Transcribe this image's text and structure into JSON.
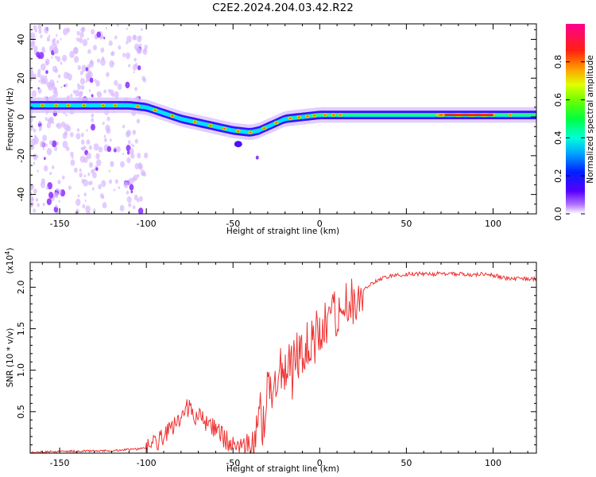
{
  "title": "C2E2.2024.204.03.42.R22",
  "colorbar": {
    "label": "Normalized spectral amplitude",
    "ticks": [
      "0.0",
      "0.2",
      "0.4",
      "0.6",
      "0.8"
    ],
    "tick_values": [
      0.0,
      0.2,
      0.4,
      0.6,
      0.8
    ]
  },
  "chart_data": [
    {
      "type": "heatmap",
      "xlabel": "Height of straight line (km)",
      "ylabel": "Frequency (Hz)",
      "xlim": [
        -167,
        125
      ],
      "ylim": [
        -50,
        48
      ],
      "xticks": [
        -150,
        -100,
        -50,
        0,
        50,
        100
      ],
      "xtick_labels": [
        "-150",
        "-100",
        "-50",
        "0",
        "50",
        "100"
      ],
      "yticks": [
        -40,
        -20,
        0,
        20,
        40
      ],
      "ytick_labels": [
        "-40",
        "-20",
        "0",
        "20",
        "40"
      ],
      "ridge": {
        "x": [
          -167,
          -150,
          -130,
          -110,
          -100,
          -90,
          -80,
          -70,
          -60,
          -50,
          -40,
          -35,
          -30,
          -20,
          -10,
          0,
          10,
          30,
          50,
          75,
          100,
          125
        ],
        "frequency": [
          6,
          6,
          6,
          6,
          5,
          2,
          -1,
          -3,
          -5,
          -7,
          -8,
          -7,
          -5,
          -1,
          0,
          1,
          1,
          1,
          1,
          1,
          1,
          1
        ]
      }
    },
    {
      "type": "line",
      "xlabel": "Height of straight line (km)",
      "ylabel": "SNR (10 * v/v)",
      "y_multiplier_label": "(x10",
      "y_multiplier_exp": "4",
      "y_multiplier_close": ")",
      "xlim": [
        -167,
        125
      ],
      "ylim": [
        0,
        2.3
      ],
      "xticks": [
        -150,
        -100,
        -50,
        0,
        50,
        100
      ],
      "xtick_labels": [
        "-150",
        "-100",
        "-50",
        "0",
        "50",
        "100"
      ],
      "yticks": [
        0.5,
        1.0,
        1.5,
        2.0
      ],
      "ytick_labels": [
        "0.5",
        "1.0",
        "1.5",
        "2.0"
      ],
      "color": "#ee3333",
      "x": [
        -167,
        -150,
        -120,
        -105,
        -100,
        -95,
        -90,
        -85,
        -80,
        -76,
        -72,
        -68,
        -64,
        -60,
        -56,
        -52,
        -50,
        -48,
        -44,
        -40,
        -36,
        -32,
        -30,
        -28,
        -25,
        -22,
        -18,
        -14,
        -10,
        -6,
        -2,
        2,
        6,
        8,
        10,
        14,
        18,
        22,
        26,
        30,
        35,
        40,
        45,
        50,
        60,
        70,
        80,
        90,
        95,
        100,
        105,
        110,
        115,
        120,
        125
      ],
      "y": [
        0.01,
        0.02,
        0.03,
        0.05,
        0.07,
        0.12,
        0.2,
        0.3,
        0.4,
        0.55,
        0.45,
        0.4,
        0.35,
        0.3,
        0.2,
        0.12,
        0.08,
        0.06,
        0.08,
        0.15,
        0.35,
        0.5,
        0.7,
        0.85,
        0.9,
        1.0,
        1.05,
        1.15,
        1.2,
        1.35,
        1.4,
        1.55,
        1.7,
        1.95,
        1.6,
        1.7,
        1.8,
        1.9,
        1.98,
        2.05,
        2.1,
        2.13,
        2.15,
        2.16,
        2.16,
        2.16,
        2.16,
        2.15,
        2.16,
        2.14,
        2.12,
        2.1,
        2.1,
        2.1,
        2.1
      ]
    }
  ]
}
